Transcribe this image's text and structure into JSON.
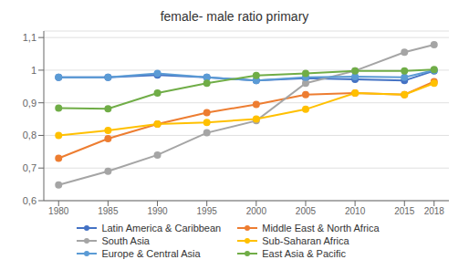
{
  "chart_data": {
    "type": "line",
    "title": "female- male ratio primary",
    "x": [
      1980,
      1985,
      1990,
      1995,
      2000,
      2005,
      2010,
      2015,
      2018
    ],
    "series": [
      {
        "name": "Latin America & Caribbean",
        "color": "#4472C4",
        "marker": "circle",
        "values": [
          0.978,
          0.978,
          0.985,
          0.978,
          0.968,
          0.975,
          0.972,
          0.968,
          0.998
        ]
      },
      {
        "name": "Middle East & North Africa",
        "color": "#ED7D31",
        "marker": "circle",
        "values": [
          0.73,
          0.79,
          0.835,
          0.87,
          0.895,
          0.925,
          0.93,
          0.925,
          0.965
        ]
      },
      {
        "name": "South Asia",
        "color": "#A5A5A5",
        "marker": "circle",
        "values": [
          0.648,
          0.69,
          0.74,
          0.808,
          0.845,
          0.96,
          0.998,
          1.055,
          1.078
        ]
      },
      {
        "name": "Sub-Saharan Africa",
        "color": "#FFC000",
        "marker": "circle",
        "values": [
          0.8,
          0.815,
          0.835,
          0.84,
          0.85,
          0.88,
          0.93,
          0.925,
          0.96
        ]
      },
      {
        "name": "Europe & Central Asia",
        "color": "#5B9BD5",
        "marker": "circle",
        "values": [
          0.978,
          0.978,
          0.99,
          0.978,
          0.968,
          0.978,
          0.98,
          0.978,
          1.0
        ]
      },
      {
        "name": "East Asia & Pacific",
        "color": "#70AD47",
        "marker": "circle",
        "values": [
          0.884,
          0.882,
          0.93,
          0.96,
          0.984,
          0.99,
          0.998,
          0.998,
          1.002
        ]
      }
    ],
    "xlim": [
      1978.5,
      2019.5
    ],
    "xticks": [
      1980,
      1985,
      1990,
      1995,
      2000,
      2005,
      2010,
      2015,
      2018
    ],
    "ylim": [
      0.6,
      1.12
    ],
    "yticks": [
      {
        "value": 0.6,
        "label": "0,6"
      },
      {
        "value": 0.7,
        "label": "0,7"
      },
      {
        "value": 0.8,
        "label": "0,8"
      },
      {
        "value": 0.9,
        "label": "0,9"
      },
      1,
      {
        "value": 1.1,
        "label": "1,1"
      }
    ],
    "grid": "y",
    "legend": "bottom"
  }
}
